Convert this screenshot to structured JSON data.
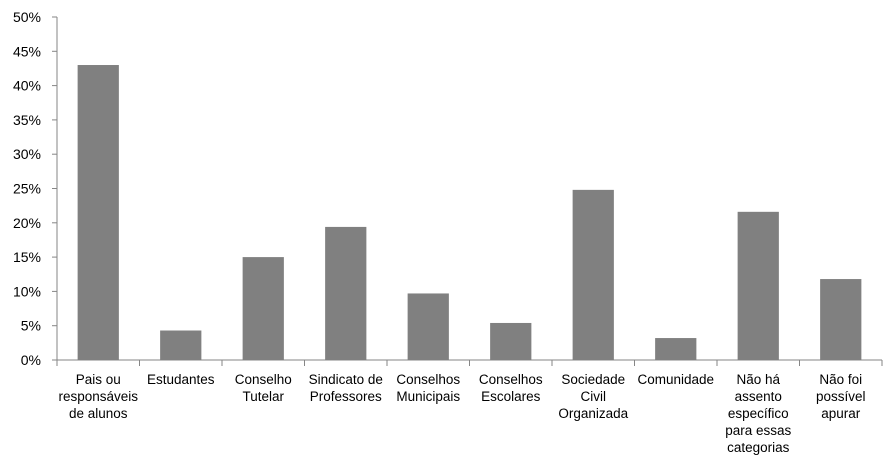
{
  "chart_data": {
    "type": "bar",
    "categories": [
      "Pais ou responsáveis de alunos",
      "Estudantes",
      "Conselho Tutelar",
      "Sindicato de Professores",
      "Conselhos Municipais",
      "Conselhos Escolares",
      "Sociedade Civil Organizada",
      "Comunidade",
      "Não há assento específico para essas categorias",
      "Não foi possível apurar"
    ],
    "category_lines": [
      [
        "Pais ou",
        "responsáveis",
        "de alunos"
      ],
      [
        "Estudantes"
      ],
      [
        "Conselho",
        "Tutelar"
      ],
      [
        "Sindicato de",
        "Professores"
      ],
      [
        "Conselhos",
        "Municipais"
      ],
      [
        "Conselhos",
        "Escolares"
      ],
      [
        "Sociedade",
        "Civil",
        "Organizada"
      ],
      [
        "Comunidade"
      ],
      [
        "Não há",
        "assento",
        "específico",
        "para essas",
        "categorias"
      ],
      [
        "Não foi",
        "possível",
        "apurar"
      ]
    ],
    "values": [
      43.0,
      4.3,
      15.0,
      19.4,
      9.7,
      5.4,
      24.8,
      3.2,
      21.6,
      11.8
    ],
    "yticks": [
      "0%",
      "5%",
      "10%",
      "15%",
      "20%",
      "25%",
      "30%",
      "35%",
      "40%",
      "45%",
      "50%"
    ],
    "ylim": [
      0,
      50
    ],
    "title": "",
    "xlabel": "",
    "ylabel": "",
    "grid": false,
    "legend": "none",
    "bar_color": "#808080",
    "axis_color": "#868686"
  }
}
